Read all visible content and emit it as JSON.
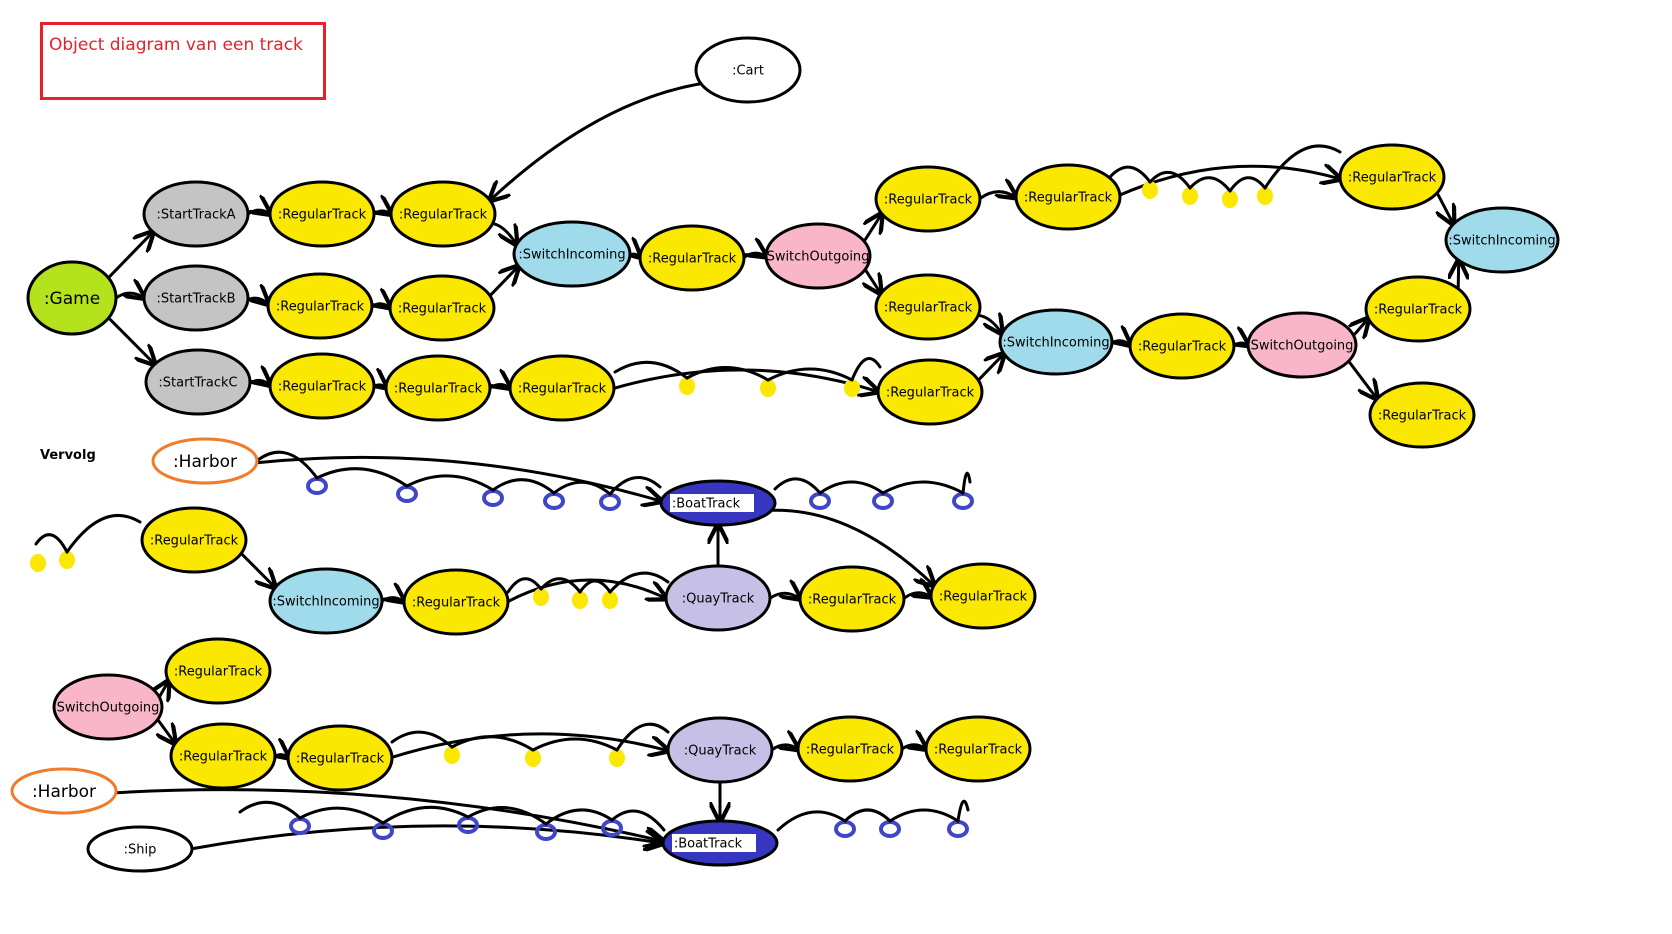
{
  "title": "Object diagram van een track",
  "section_label": "Vervolg",
  "colors": {
    "game": "#b4e21c",
    "start": "#c4c4c4",
    "regular": "#fbe800",
    "switch_in": "#9fdbeb",
    "switch_out": "#f9b6c8",
    "quay": "#c7c0e6",
    "boat": "#3636c0",
    "harbor_border": "#f07b2b",
    "title_red": "#e8202a",
    "dot_yellow": "#fbe800",
    "dot_blue": "#3f46c8"
  },
  "nodes": [
    {
      "id": "cart",
      "label": ":Cart",
      "kind": "plain"
    },
    {
      "id": "game",
      "label": ":Game",
      "kind": "game"
    },
    {
      "id": "sa",
      "label": ":StartTrackA",
      "kind": "start"
    },
    {
      "id": "sb",
      "label": ":StartTrackB",
      "kind": "start"
    },
    {
      "id": "sc",
      "label": ":StartTrackC",
      "kind": "start"
    },
    {
      "id": "r1",
      "label": ":RegularTrack",
      "kind": "regular"
    },
    {
      "id": "r2",
      "label": ":RegularTrack",
      "kind": "regular"
    },
    {
      "id": "r3",
      "label": ":RegularTrack",
      "kind": "regular"
    },
    {
      "id": "r4",
      "label": ":RegularTrack",
      "kind": "regular"
    },
    {
      "id": "r5",
      "label": ":RegularTrack",
      "kind": "regular"
    },
    {
      "id": "r6",
      "label": ":RegularTrack",
      "kind": "regular"
    },
    {
      "id": "r7",
      "label": ":RegularTrack",
      "kind": "regular"
    },
    {
      "id": "si1",
      "label": ":SwitchIncoming",
      "kind": "switch_in"
    },
    {
      "id": "r8",
      "label": ":RegularTrack",
      "kind": "regular"
    },
    {
      "id": "so1",
      "label": "SwitchOutgoing",
      "kind": "switch_out"
    },
    {
      "id": "r9",
      "label": ":RegularTrack",
      "kind": "regular"
    },
    {
      "id": "r10",
      "label": ":RegularTrack",
      "kind": "regular"
    },
    {
      "id": "r11",
      "label": ":RegularTrack",
      "kind": "regular"
    },
    {
      "id": "si2",
      "label": ":SwitchIncoming",
      "kind": "switch_in"
    },
    {
      "id": "r12",
      "label": ":RegularTrack",
      "kind": "regular"
    },
    {
      "id": "r13",
      "label": ":RegularTrack",
      "kind": "regular"
    },
    {
      "id": "si3",
      "label": ":SwitchIncoming",
      "kind": "switch_in"
    },
    {
      "id": "r14",
      "label": ":RegularTrack",
      "kind": "regular"
    },
    {
      "id": "so2",
      "label": "SwitchOutgoing",
      "kind": "switch_out"
    },
    {
      "id": "r15",
      "label": ":RegularTrack",
      "kind": "regular"
    },
    {
      "id": "r16",
      "label": ":RegularTrack",
      "kind": "regular"
    },
    {
      "id": "harbor1",
      "label": ":Harbor",
      "kind": "harbor"
    },
    {
      "id": "boat1",
      "label": ":BoatTrack",
      "kind": "boat"
    },
    {
      "id": "r17",
      "label": ":RegularTrack",
      "kind": "regular"
    },
    {
      "id": "si4",
      "label": ":SwitchIncoming",
      "kind": "switch_in"
    },
    {
      "id": "r18",
      "label": ":RegularTrack",
      "kind": "regular"
    },
    {
      "id": "quay1",
      "label": ":QuayTrack",
      "kind": "quay"
    },
    {
      "id": "r19",
      "label": ":RegularTrack",
      "kind": "regular"
    },
    {
      "id": "r20",
      "label": ":RegularTrack",
      "kind": "regular"
    },
    {
      "id": "r21",
      "label": ":RegularTrack",
      "kind": "regular"
    },
    {
      "id": "so3",
      "label": "SwitchOutgoing",
      "kind": "switch_out"
    },
    {
      "id": "r22",
      "label": ":RegularTrack",
      "kind": "regular"
    },
    {
      "id": "r23",
      "label": ":RegularTrack",
      "kind": "regular"
    },
    {
      "id": "quay2",
      "label": ":QuayTrack",
      "kind": "quay"
    },
    {
      "id": "r24",
      "label": ":RegularTrack",
      "kind": "regular"
    },
    {
      "id": "r25",
      "label": ":RegularTrack",
      "kind": "regular"
    },
    {
      "id": "harbor2",
      "label": ":Harbor",
      "kind": "harbor"
    },
    {
      "id": "ship",
      "label": ":Ship",
      "kind": "plain"
    },
    {
      "id": "boat2",
      "label": ":BoatTrack",
      "kind": "boat"
    }
  ],
  "edges": [
    [
      "cart",
      "r2"
    ],
    [
      "game",
      "sa"
    ],
    [
      "game",
      "sb"
    ],
    [
      "game",
      "sc"
    ],
    [
      "sa",
      "r1"
    ],
    [
      "r1",
      "r2"
    ],
    [
      "r2",
      "si1"
    ],
    [
      "sb",
      "r3"
    ],
    [
      "r3",
      "r4"
    ],
    [
      "r4",
      "si1"
    ],
    [
      "sc",
      "r5"
    ],
    [
      "r5",
      "r6"
    ],
    [
      "r6",
      "r7"
    ],
    [
      "r7",
      "r11"
    ],
    [
      "si1",
      "r8"
    ],
    [
      "r8",
      "so1"
    ],
    [
      "so1",
      "r9"
    ],
    [
      "so1",
      "r10"
    ],
    [
      "r9",
      "r12"
    ],
    [
      "r12",
      "r13"
    ],
    [
      "r13",
      "si3"
    ],
    [
      "r10",
      "si2"
    ],
    [
      "r11",
      "si2"
    ],
    [
      "si2",
      "r14"
    ],
    [
      "r14",
      "so2"
    ],
    [
      "so2",
      "r15"
    ],
    [
      "so2",
      "r16"
    ],
    [
      "r15",
      "si3"
    ],
    [
      "harbor1",
      "boat1"
    ],
    [
      "boat1",
      "r20"
    ],
    [
      "r17",
      "si4"
    ],
    [
      "si4",
      "r18"
    ],
    [
      "r18",
      "quay1"
    ],
    [
      "quay1",
      "boat1"
    ],
    [
      "quay1",
      "r19"
    ],
    [
      "r19",
      "r20"
    ],
    [
      "so3",
      "r21"
    ],
    [
      "so3",
      "r22"
    ],
    [
      "r22",
      "r23"
    ],
    [
      "r23",
      "quay2"
    ],
    [
      "quay2",
      "boat2"
    ],
    [
      "quay2",
      "r24"
    ],
    [
      "r24",
      "r25"
    ],
    [
      "harbor2",
      "boat2"
    ],
    [
      "ship",
      "boat2"
    ]
  ]
}
